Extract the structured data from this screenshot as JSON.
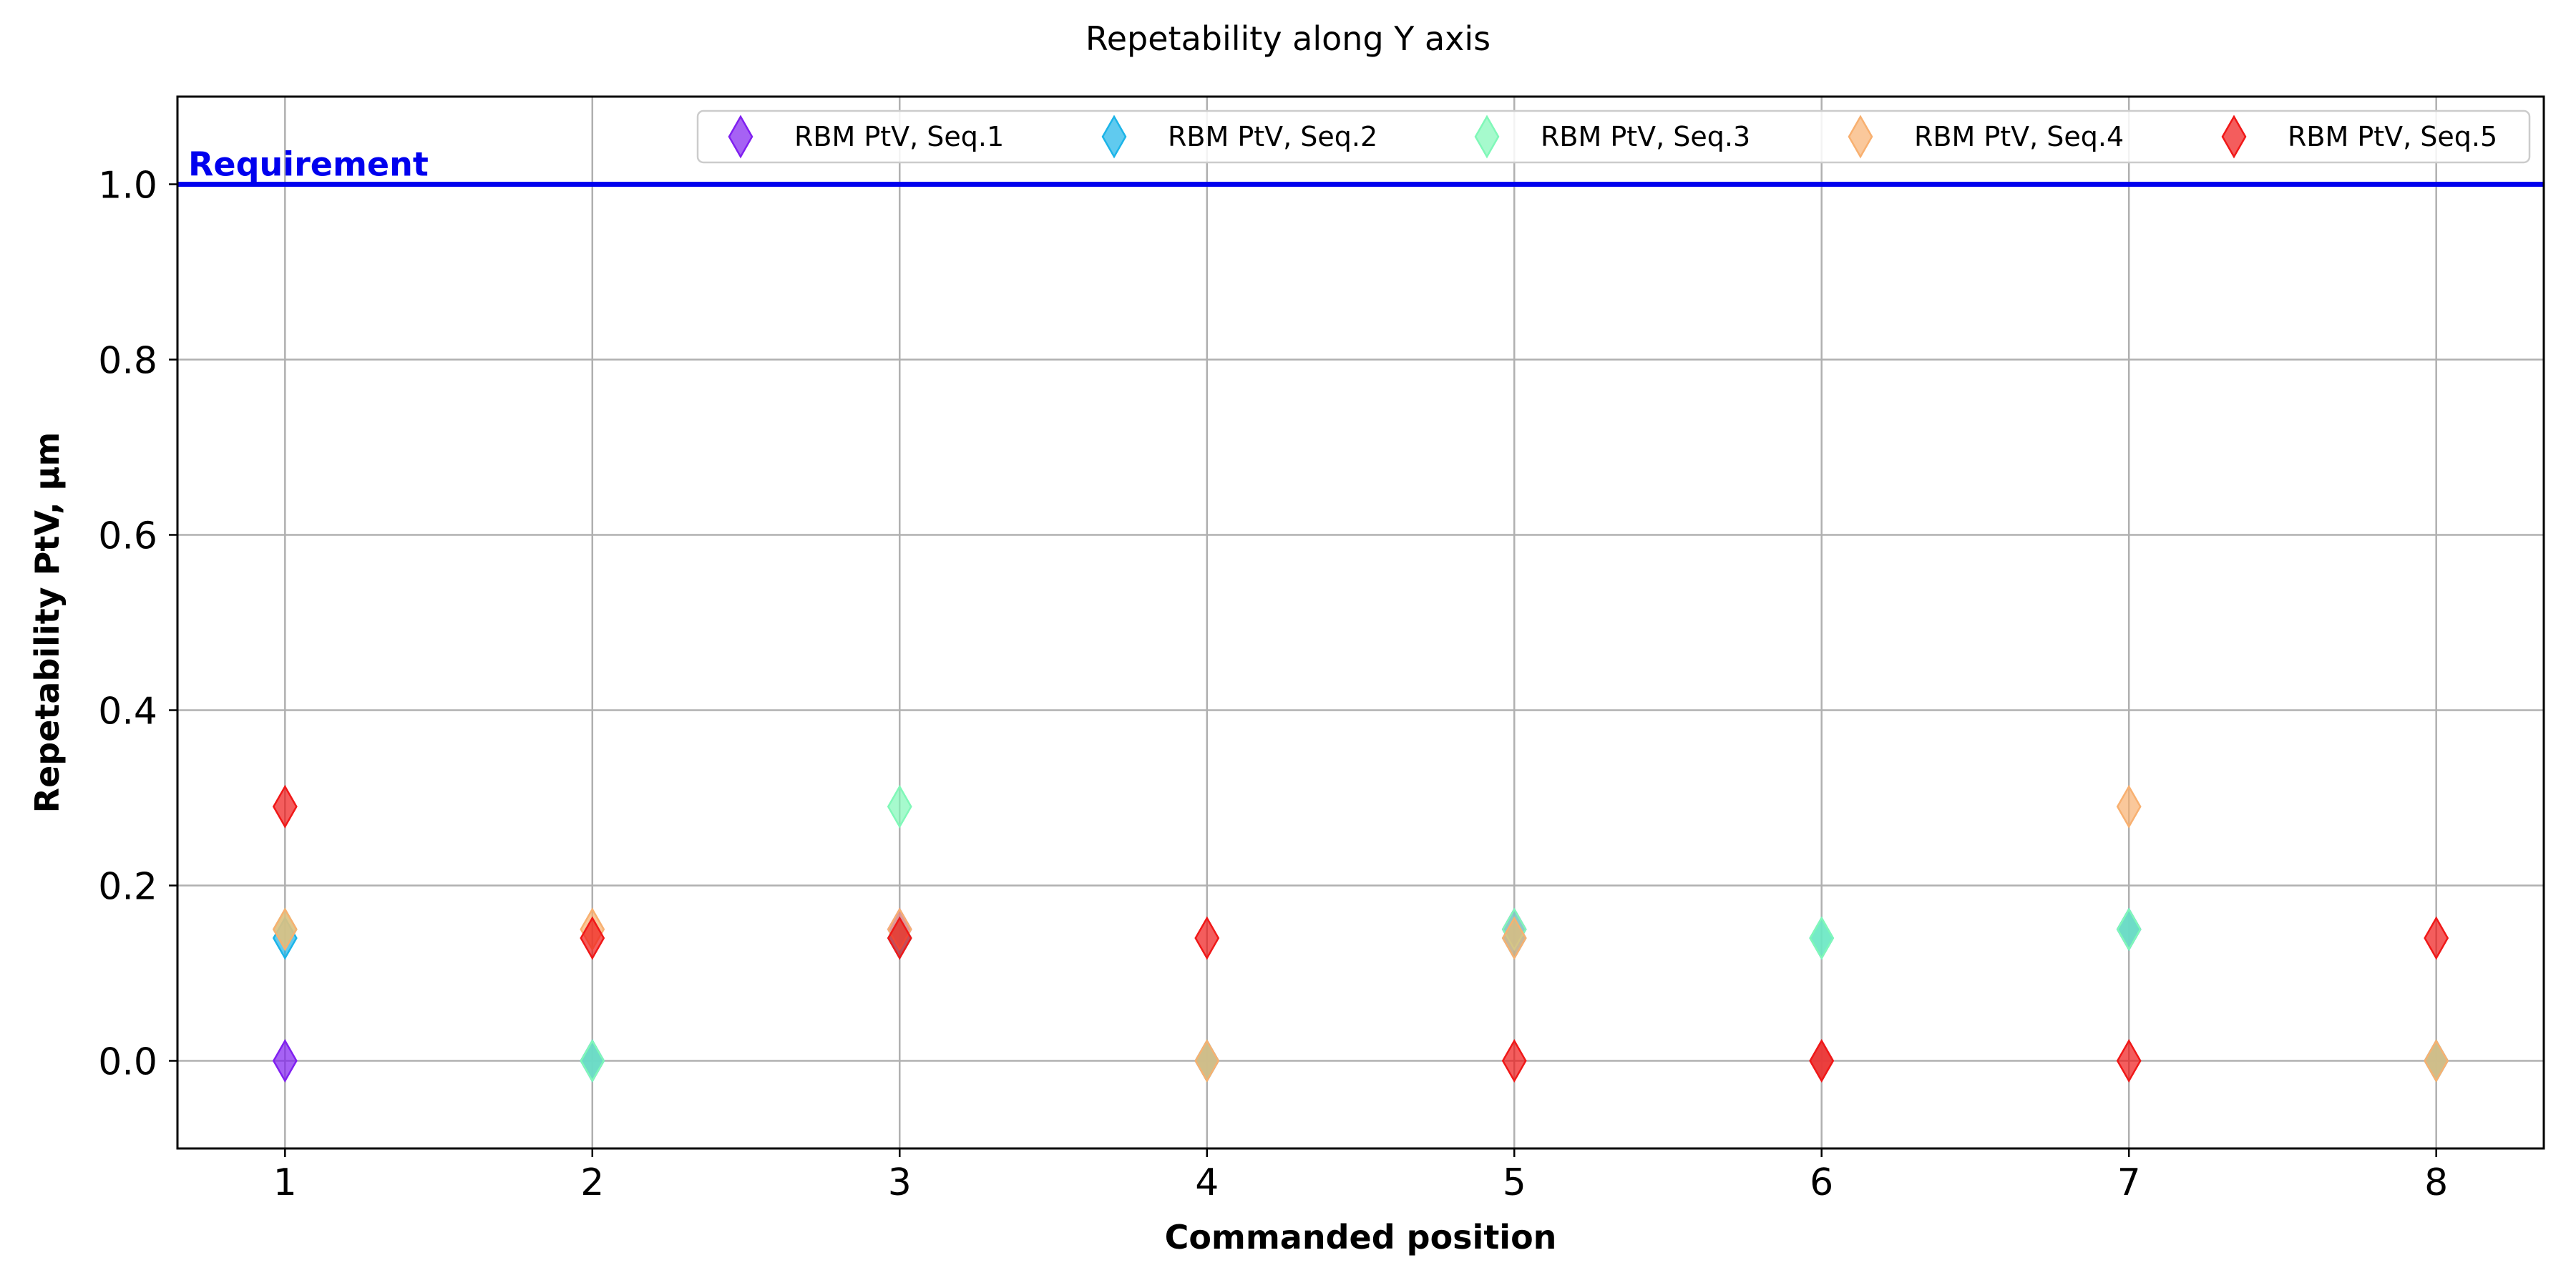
{
  "chart_data": {
    "type": "scatter",
    "title": "Repetability along Y axis",
    "xlabel": "Commanded position",
    "ylabel": "Repetability PtV, µm",
    "xlim": [
      0.65,
      8.35
    ],
    "ylim": [
      -0.1,
      1.1
    ],
    "xticks": [
      1,
      2,
      3,
      4,
      5,
      6,
      7,
      8
    ],
    "yticks": [
      0.0,
      0.2,
      0.4,
      0.6,
      0.8,
      1.0
    ],
    "ytick_labels": [
      "0.0",
      "0.2",
      "0.4",
      "0.6",
      "0.8",
      "1.0"
    ],
    "grid": true,
    "legend_position": "top-right",
    "marker": "thin-diamond",
    "requirement": {
      "label": "Requirement",
      "y": 1.0,
      "color": "#0000ee"
    },
    "series": [
      {
        "name": "RBM PtV, Seq.1",
        "color": "#8020f0",
        "x": [
          1,
          2,
          3,
          4,
          5,
          6,
          7,
          8
        ],
        "y": [
          0.0,
          0.0,
          0.15,
          0.0,
          0.15,
          0.0,
          0.15,
          0.0
        ]
      },
      {
        "name": "RBM PtV, Seq.2",
        "color": "#1cb4e8",
        "x": [
          1,
          2,
          3,
          4,
          5,
          6,
          7,
          8
        ],
        "y": [
          0.14,
          0.0,
          0.14,
          0.0,
          0.14,
          0.14,
          0.15,
          0.0
        ]
      },
      {
        "name": "RBM PtV, Seq.3",
        "color": "#80f8b8",
        "x": [
          1,
          2,
          3,
          4,
          5,
          6,
          7,
          8
        ],
        "y": [
          0.15,
          0.0,
          0.29,
          0.0,
          0.15,
          0.14,
          0.15,
          0.0
        ]
      },
      {
        "name": "RBM PtV, Seq.4",
        "color": "#f8b070",
        "x": [
          1,
          2,
          3,
          4,
          5,
          6,
          7,
          8
        ],
        "y": [
          0.15,
          0.15,
          0.15,
          0.0,
          0.14,
          0.0,
          0.29,
          0.0
        ]
      },
      {
        "name": "RBM PtV, Seq.5",
        "color": "#f01818",
        "x": [
          1,
          2,
          3,
          4,
          5,
          6,
          7,
          8
        ],
        "y": [
          0.29,
          0.14,
          0.14,
          0.14,
          0.0,
          0.0,
          0.0,
          0.14
        ]
      }
    ]
  }
}
